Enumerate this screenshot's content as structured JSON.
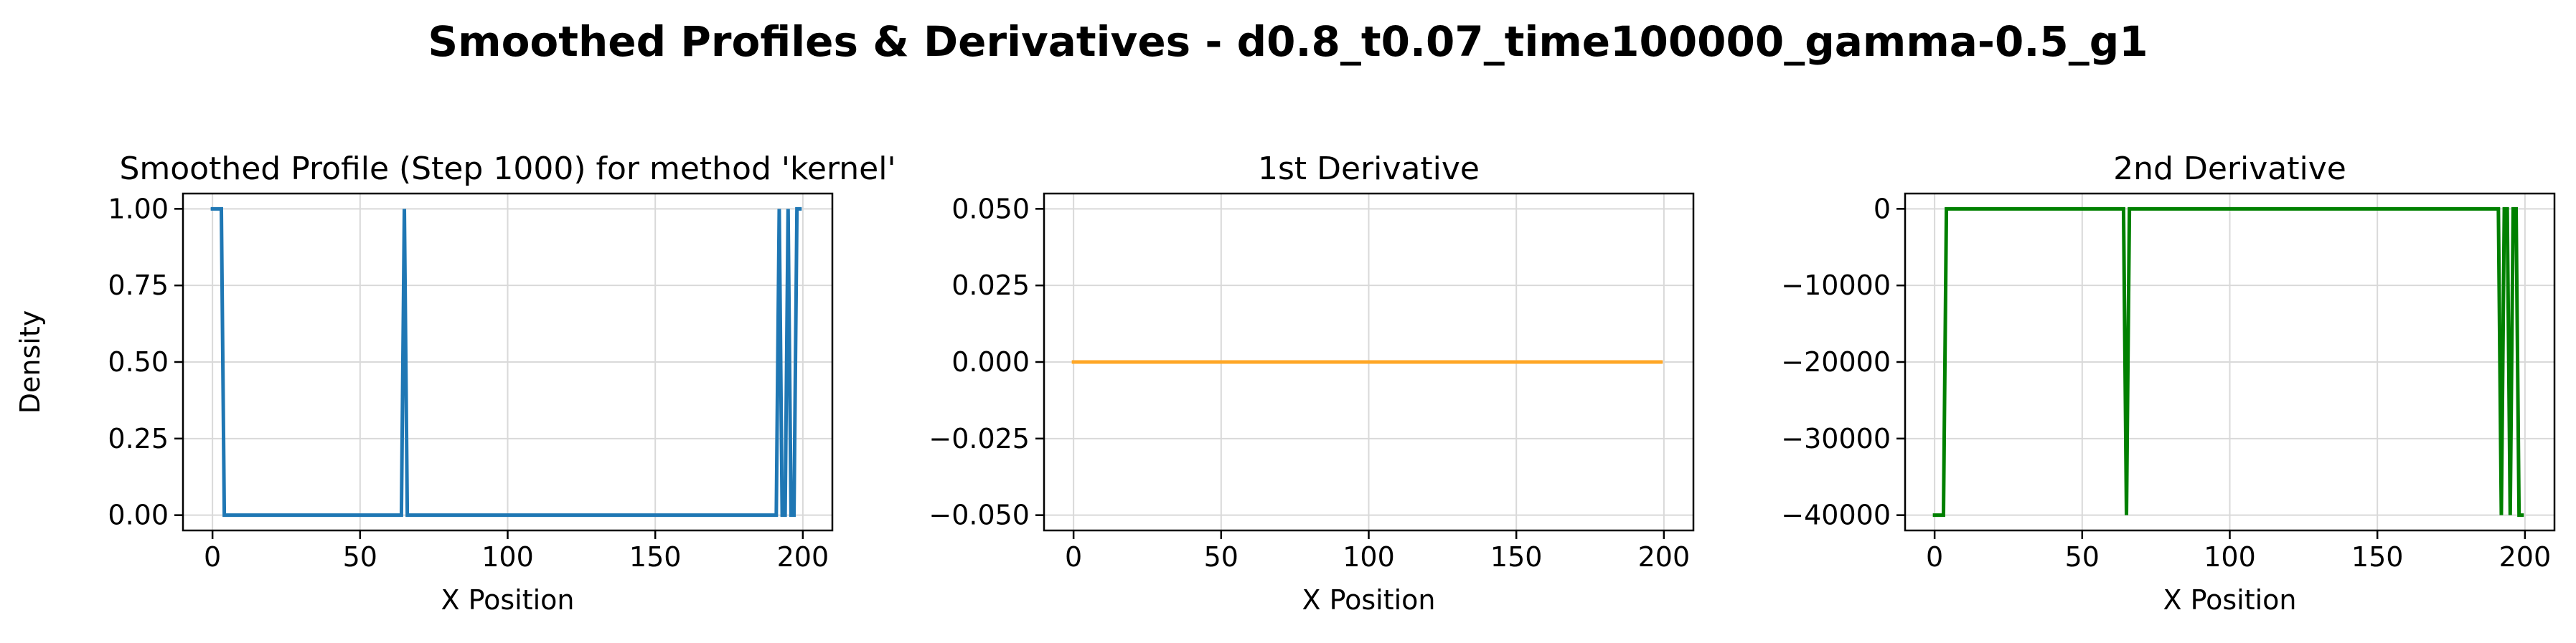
{
  "suptitle": "Smoothed Profiles & Derivatives - d0.8_t0.07_time100000_gamma-0.5_g1",
  "chart_data": [
    {
      "type": "line",
      "title": "Smoothed Profile (Step 1000) for method 'kernel'",
      "xlabel": "X Position",
      "ylabel": "Density",
      "xlim": [
        -10,
        210
      ],
      "ylim": [
        -0.05,
        1.05
      ],
      "xticks": [
        0,
        50,
        100,
        150,
        200
      ],
      "yticks": [
        0.0,
        0.25,
        0.5,
        0.75,
        1.0
      ],
      "ytick_labels": [
        "0.00",
        "0.25",
        "0.50",
        "0.75",
        "1.00"
      ],
      "grid": true,
      "series": [
        {
          "color": "#1f77b4",
          "x": [
            0,
            1,
            2,
            3,
            4,
            5,
            64,
            65,
            66,
            190,
            191,
            192,
            193,
            194,
            195,
            196,
            197,
            198,
            199
          ],
          "y": [
            1,
            1,
            1,
            1,
            0,
            0,
            0,
            1,
            0,
            0,
            0,
            1,
            0,
            0,
            1,
            0,
            0,
            1,
            1
          ]
        }
      ]
    },
    {
      "type": "line",
      "title": "1st Derivative",
      "xlabel": "X Position",
      "ylabel": "",
      "xlim": [
        -10,
        210
      ],
      "ylim": [
        -0.055,
        0.055
      ],
      "xticks": [
        0,
        50,
        100,
        150,
        200
      ],
      "yticks": [
        -0.05,
        -0.025,
        0.0,
        0.025,
        0.05
      ],
      "ytick_labels": [
        "−0.050",
        "−0.025",
        "0.000",
        "0.025",
        "0.050"
      ],
      "grid": true,
      "series": [
        {
          "color": "#ffa726",
          "x": [
            0,
            199
          ],
          "y": [
            0,
            0
          ]
        }
      ]
    },
    {
      "type": "line",
      "title": "2nd Derivative",
      "xlabel": "X Position",
      "ylabel": "",
      "xlim": [
        -10,
        210
      ],
      "ylim": [
        -42000,
        2000
      ],
      "xticks": [
        0,
        50,
        100,
        150,
        200
      ],
      "yticks": [
        -40000,
        -30000,
        -20000,
        -10000,
        0
      ],
      "ytick_labels": [
        "−40000",
        "−30000",
        "−20000",
        "−10000",
        "0"
      ],
      "grid": true,
      "series": [
        {
          "color": "#008000",
          "x": [
            0,
            1,
            2,
            3,
            4,
            5,
            64,
            65,
            66,
            190,
            191,
            192,
            193,
            194,
            195,
            196,
            197,
            198,
            199
          ],
          "y": [
            -40000,
            -40000,
            -40000,
            -40000,
            0,
            0,
            0,
            -40000,
            0,
            0,
            0,
            -40000,
            0,
            0,
            -40000,
            0,
            0,
            -40000,
            -40000
          ]
        }
      ]
    }
  ]
}
